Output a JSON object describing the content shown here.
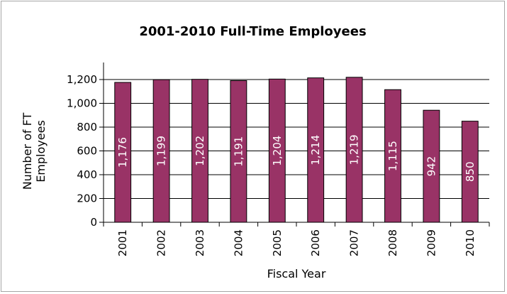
{
  "chart_data": {
    "type": "bar",
    "title": "2001-2010 Full-Time Employees",
    "xlabel": "Fiscal Year",
    "ylabel": "Number of FT Employees",
    "ylabel_lines": [
      "Number of FT",
      "Employees"
    ],
    "categories": [
      "2001",
      "2002",
      "2003",
      "2004",
      "2005",
      "2006",
      "2007",
      "2008",
      "2009",
      "2010"
    ],
    "values": [
      1176,
      1199,
      1202,
      1191,
      1204,
      1214,
      1219,
      1115,
      942,
      850
    ],
    "data_labels": [
      "1,176",
      "1,199",
      "1,202",
      "1,191",
      "1,204",
      "1,214",
      "1,219",
      "1,115",
      "942",
      "850"
    ],
    "ylim": [
      0,
      1200
    ],
    "yticks": [
      0,
      200,
      400,
      600,
      800,
      1000,
      1200
    ],
    "ytick_labels": [
      "0",
      "200",
      "400",
      "600",
      "800",
      "1,000",
      "1,200"
    ],
    "grid": true,
    "legend": "none",
    "colors": {
      "bar_fill": "#993366",
      "bar_stroke": "#000000",
      "data_label": "#ffffff"
    }
  }
}
